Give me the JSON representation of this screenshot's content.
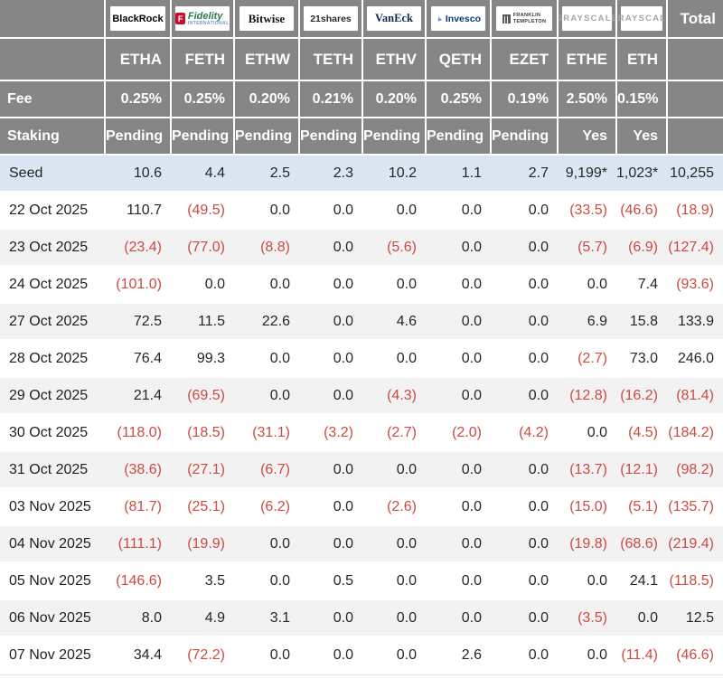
{
  "chart_data": {
    "type": "table",
    "corner_labels": {
      "fee": "Fee",
      "staking": "Staking",
      "total": "Total"
    },
    "columns": [
      {
        "issuer": "BlackRock",
        "logo": "blackrock",
        "logo_text": "BlackRock",
        "ticker": "ETHA",
        "fee": "0.25%",
        "staking": "Pending"
      },
      {
        "issuer": "Fidelity",
        "logo": "fidelity",
        "logo_text": "Fidelity",
        "logo_icon": "F",
        "logo_sub": "INTERNATIONAL",
        "ticker": "FETH",
        "fee": "0.25%",
        "staking": "Pending"
      },
      {
        "issuer": "Bitwise",
        "logo": "bitwise",
        "logo_text": "Bitwise",
        "ticker": "ETHW",
        "fee": "0.20%",
        "staking": "Pending"
      },
      {
        "issuer": "21shares",
        "logo": "shares21",
        "logo_text": "21shares",
        "ticker": "TETH",
        "fee": "0.21%",
        "staking": "Pending"
      },
      {
        "issuer": "VanEck",
        "logo": "vaneck",
        "logo_text": "VanEck",
        "ticker": "ETHV",
        "fee": "0.20%",
        "staking": "Pending"
      },
      {
        "issuer": "Invesco",
        "logo": "invesco",
        "logo_text": "Invesco",
        "logo_icon": "▲",
        "ticker": "QETH",
        "fee": "0.25%",
        "staking": "Pending"
      },
      {
        "issuer": "Franklin Templeton",
        "logo": "franklin",
        "logo_lines": [
          "FRANKLIN",
          "TEMPLETON"
        ],
        "ticker": "EZET",
        "fee": "0.19%",
        "staking": "Pending"
      },
      {
        "issuer": "Grayscale",
        "logo": "grayscale",
        "logo_text": "GRAYSCALE",
        "ticker": "ETHE",
        "fee": "2.50%",
        "staking": "Yes"
      },
      {
        "issuer": "Grayscale",
        "logo": "grayscale",
        "logo_text": "GRAYSCALE",
        "ticker": "ETH",
        "fee": "0.15%",
        "staking": "Yes"
      }
    ],
    "rows": [
      {
        "label": "Seed",
        "values": [
          "10.6",
          "4.4",
          "2.5",
          "2.3",
          "10.2",
          "1.1",
          "2.7",
          "9,199*",
          "1,023*",
          "10,255"
        ]
      },
      {
        "label": "22 Oct 2025",
        "values": [
          "110.7",
          "(49.5)",
          "0.0",
          "0.0",
          "0.0",
          "0.0",
          "0.0",
          "(33.5)",
          "(46.6)",
          "(18.9)"
        ]
      },
      {
        "label": "23 Oct 2025",
        "values": [
          "(23.4)",
          "(77.0)",
          "(8.8)",
          "0.0",
          "(5.6)",
          "0.0",
          "0.0",
          "(5.7)",
          "(6.9)",
          "(127.4)"
        ]
      },
      {
        "label": "24 Oct 2025",
        "values": [
          "(101.0)",
          "0.0",
          "0.0",
          "0.0",
          "0.0",
          "0.0",
          "0.0",
          "0.0",
          "7.4",
          "(93.6)"
        ]
      },
      {
        "label": "27 Oct 2025",
        "values": [
          "72.5",
          "11.5",
          "22.6",
          "0.0",
          "4.6",
          "0.0",
          "0.0",
          "6.9",
          "15.8",
          "133.9"
        ]
      },
      {
        "label": "28 Oct 2025",
        "values": [
          "76.4",
          "99.3",
          "0.0",
          "0.0",
          "0.0",
          "0.0",
          "0.0",
          "(2.7)",
          "73.0",
          "246.0"
        ]
      },
      {
        "label": "29 Oct 2025",
        "values": [
          "21.4",
          "(69.5)",
          "0.0",
          "0.0",
          "(4.3)",
          "0.0",
          "0.0",
          "(12.8)",
          "(16.2)",
          "(81.4)"
        ]
      },
      {
        "label": "30 Oct 2025",
        "values": [
          "(118.0)",
          "(18.5)",
          "(31.1)",
          "(3.2)",
          "(2.7)",
          "(2.0)",
          "(4.2)",
          "0.0",
          "(4.5)",
          "(184.2)"
        ]
      },
      {
        "label": "31 Oct 2025",
        "values": [
          "(38.6)",
          "(27.1)",
          "(6.7)",
          "0.0",
          "0.0",
          "0.0",
          "0.0",
          "(13.7)",
          "(12.1)",
          "(98.2)"
        ]
      },
      {
        "label": "03 Nov 2025",
        "values": [
          "(81.7)",
          "(25.1)",
          "(6.2)",
          "0.0",
          "(2.6)",
          "0.0",
          "0.0",
          "(15.0)",
          "(5.1)",
          "(135.7)"
        ]
      },
      {
        "label": "04 Nov 2025",
        "values": [
          "(111.1)",
          "(19.9)",
          "0.0",
          "0.0",
          "0.0",
          "0.0",
          "0.0",
          "(19.8)",
          "(68.6)",
          "(219.4)"
        ]
      },
      {
        "label": "05 Nov 2025",
        "values": [
          "(146.6)",
          "3.5",
          "0.0",
          "0.5",
          "0.0",
          "0.0",
          "0.0",
          "0.0",
          "24.1",
          "(118.5)"
        ]
      },
      {
        "label": "06 Nov 2025",
        "values": [
          "8.0",
          "4.9",
          "3.1",
          "0.0",
          "0.0",
          "0.0",
          "0.0",
          "(3.5)",
          "0.0",
          "12.5"
        ]
      },
      {
        "label": "07 Nov 2025",
        "values": [
          "34.4",
          "(72.2)",
          "0.0",
          "0.0",
          "0.0",
          "2.6",
          "0.0",
          "0.0",
          "(11.4)",
          "(46.6)"
        ]
      }
    ],
    "colors": {
      "header_bg": "#868686",
      "seed_row_bg": "#dce6f2",
      "stripe_bg": "#f2f2f2",
      "negative_text": "#cd4a42",
      "fidelity_red": "#c8102e",
      "fidelity_green": "#2e7d4f",
      "vaneck_navy": "#0d2c52",
      "invesco_blue": "#0c3a7a",
      "grayscale_gray": "#a6a6a6"
    }
  }
}
